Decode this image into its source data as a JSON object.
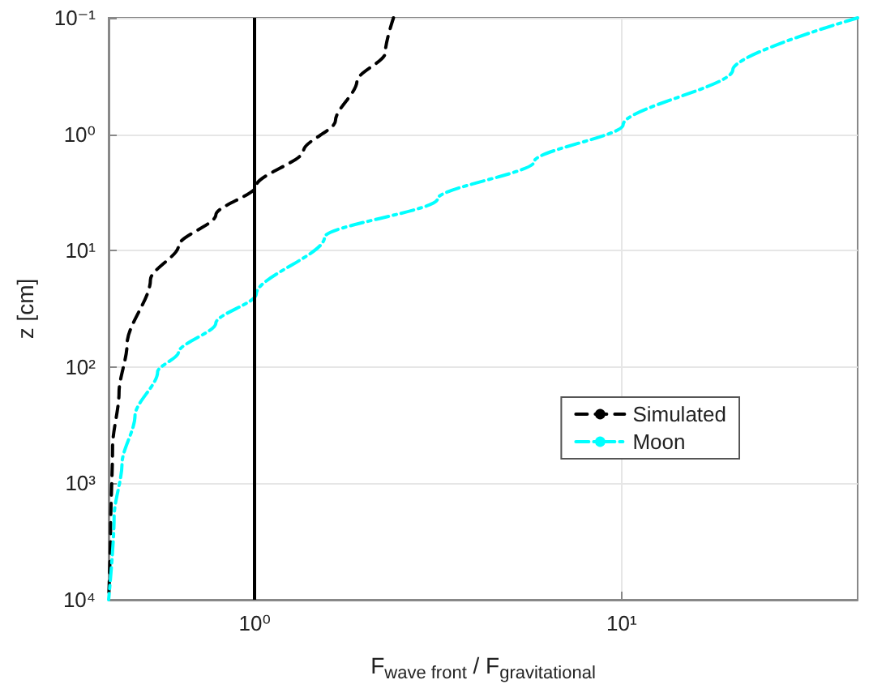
{
  "chart_data": {
    "type": "line",
    "xlabel": "F$_{wave front}$ / F$_{gravitational}$",
    "ylabel": "z [cm]",
    "log": "xy",
    "grid": true,
    "legend": "right",
    "marker": "none",
    "xlim": [
      0.4,
      44
    ],
    "xticks": [
      {
        "value": 1,
        "label": "10⁰"
      },
      {
        "value": 10,
        "label": "10¹"
      }
    ],
    "ylim": [
      10000,
      0.1
    ],
    "yticks": [
      {
        "value": 0.1,
        "label": "10⁻¹"
      },
      {
        "value": 1,
        "label": "10⁰"
      },
      {
        "value": 10,
        "label": "10¹"
      },
      {
        "value": 100,
        "label": "10²"
      },
      {
        "value": 1000,
        "label": "10³"
      },
      {
        "value": 10000,
        "label": "10⁴"
      }
    ],
    "ref_lines": [
      {
        "axis": "x",
        "value": 1,
        "color": "#000000",
        "line_style": "solid"
      }
    ],
    "series": [
      {
        "name": "Simulated",
        "color": "#000000",
        "line_style": "dashed",
        "x": [
          2.39,
          2.27,
          1.9,
          1.66,
          1.36,
          1.01,
          0.784,
          0.62,
          0.52,
          0.449,
          0.427,
          0.41,
          0.405,
          0.4
        ],
        "values": [
          0.1,
          0.2,
          0.35,
          0.77,
          1.38,
          2.78,
          4.94,
          9.1,
          17.8,
          64,
          166,
          490,
          2450,
          10000
        ]
      },
      {
        "name": "Moon",
        "color": "#00ffff",
        "line_style": "dashdot",
        "x": [
          44,
          20.1,
          10.1,
          5.78,
          3.15,
          1.55,
          1.01,
          0.784,
          0.62,
          0.544,
          0.472,
          0.435,
          0.414,
          0.4
        ],
        "values": [
          0.1,
          0.28,
          0.83,
          1.72,
          3.6,
          7.7,
          23.7,
          42,
          75,
          110,
          263,
          680,
          1950,
          10000
        ]
      }
    ]
  }
}
